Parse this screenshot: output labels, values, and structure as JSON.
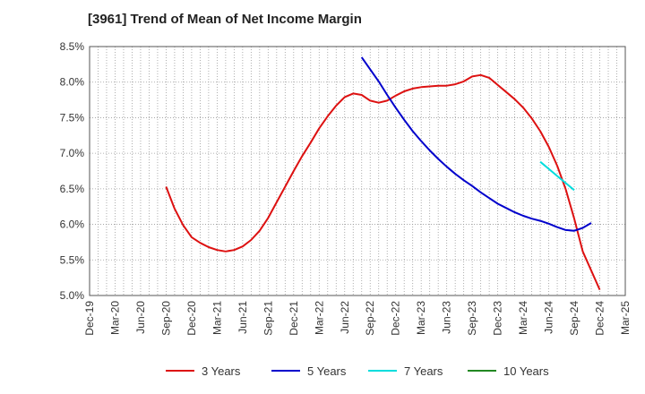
{
  "chart_data": {
    "type": "line",
    "title": "[3961]  Trend of Mean of Net Income Margin",
    "xlabel": "",
    "ylabel": "",
    "ylim": [
      5.0,
      8.5
    ],
    "y_ticks": [
      "5.0%",
      "5.5%",
      "6.0%",
      "6.5%",
      "7.0%",
      "7.5%",
      "8.0%",
      "8.5%"
    ],
    "x_ticks": [
      "Dec-19",
      "Mar-20",
      "Jun-20",
      "Sep-20",
      "Dec-20",
      "Mar-21",
      "Jun-21",
      "Sep-21",
      "Dec-21",
      "Mar-22",
      "Jun-22",
      "Sep-22",
      "Dec-22",
      "Mar-23",
      "Jun-23",
      "Sep-23",
      "Dec-23",
      "Mar-24",
      "Jun-24",
      "Sep-24",
      "Dec-24",
      "Mar-25"
    ],
    "grid": true,
    "legend_position": "bottom",
    "series": [
      {
        "name": "3 Years",
        "color": "#dd1111",
        "points": [
          [
            "2020-09",
            6.53
          ],
          [
            "2020-10",
            6.22
          ],
          [
            "2020-11",
            5.99
          ],
          [
            "2020-12",
            5.82
          ],
          [
            "2021-01",
            5.74
          ],
          [
            "2021-02",
            5.68
          ],
          [
            "2021-03",
            5.64
          ],
          [
            "2021-04",
            5.62
          ],
          [
            "2021-05",
            5.64
          ],
          [
            "2021-06",
            5.69
          ],
          [
            "2021-07",
            5.78
          ],
          [
            "2021-08",
            5.91
          ],
          [
            "2021-09",
            6.09
          ],
          [
            "2021-10",
            6.31
          ],
          [
            "2021-11",
            6.53
          ],
          [
            "2021-12",
            6.75
          ],
          [
            "2022-01",
            6.96
          ],
          [
            "2022-02",
            7.15
          ],
          [
            "2022-03",
            7.35
          ],
          [
            "2022-04",
            7.52
          ],
          [
            "2022-05",
            7.67
          ],
          [
            "2022-06",
            7.79
          ],
          [
            "2022-07",
            7.84
          ],
          [
            "2022-08",
            7.82
          ],
          [
            "2022-09",
            7.74
          ],
          [
            "2022-10",
            7.71
          ],
          [
            "2022-11",
            7.74
          ],
          [
            "2022-12",
            7.81
          ],
          [
            "2023-01",
            7.87
          ],
          [
            "2023-02",
            7.91
          ],
          [
            "2023-03",
            7.93
          ],
          [
            "2023-04",
            7.94
          ],
          [
            "2023-05",
            7.95
          ],
          [
            "2023-06",
            7.95
          ],
          [
            "2023-07",
            7.97
          ],
          [
            "2023-08",
            8.01
          ],
          [
            "2023-09",
            8.08
          ],
          [
            "2023-10",
            8.1
          ],
          [
            "2023-11",
            8.06
          ],
          [
            "2023-12",
            7.96
          ],
          [
            "2024-01",
            7.86
          ],
          [
            "2024-02",
            7.76
          ],
          [
            "2024-03",
            7.64
          ],
          [
            "2024-04",
            7.49
          ],
          [
            "2024-05",
            7.31
          ],
          [
            "2024-06",
            7.09
          ],
          [
            "2024-07",
            6.82
          ],
          [
            "2024-08",
            6.49
          ],
          [
            "2024-09",
            6.08
          ],
          [
            "2024-10",
            5.62
          ],
          [
            "2024-11",
            5.35
          ],
          [
            "2024-12",
            5.08
          ]
        ]
      },
      {
        "name": "5 Years",
        "color": "#0000cc",
        "points": [
          [
            "2022-08",
            8.35
          ],
          [
            "2022-09",
            8.18
          ],
          [
            "2022-10",
            8.01
          ],
          [
            "2022-11",
            7.82
          ],
          [
            "2022-12",
            7.64
          ],
          [
            "2023-01",
            7.47
          ],
          [
            "2023-02",
            7.31
          ],
          [
            "2023-03",
            7.17
          ],
          [
            "2023-04",
            7.04
          ],
          [
            "2023-05",
            6.92
          ],
          [
            "2023-06",
            6.81
          ],
          [
            "2023-07",
            6.71
          ],
          [
            "2023-08",
            6.62
          ],
          [
            "2023-09",
            6.54
          ],
          [
            "2023-10",
            6.45
          ],
          [
            "2023-11",
            6.37
          ],
          [
            "2023-12",
            6.29
          ],
          [
            "2024-01",
            6.23
          ],
          [
            "2024-02",
            6.17
          ],
          [
            "2024-03",
            6.12
          ],
          [
            "2024-04",
            6.08
          ],
          [
            "2024-05",
            6.05
          ],
          [
            "2024-06",
            6.01
          ],
          [
            "2024-07",
            5.96
          ],
          [
            "2024-08",
            5.92
          ],
          [
            "2024-09",
            5.91
          ],
          [
            "2024-10",
            5.95
          ],
          [
            "2024-11",
            6.02
          ]
        ]
      },
      {
        "name": "7 Years",
        "color": "#00dddd",
        "points": [
          [
            "2024-05",
            6.88
          ],
          [
            "2024-06",
            6.78
          ],
          [
            "2024-07",
            6.68
          ],
          [
            "2024-08",
            6.58
          ],
          [
            "2024-09",
            6.48
          ]
        ]
      },
      {
        "name": "10 Years",
        "color": "#228822",
        "points": []
      }
    ]
  }
}
